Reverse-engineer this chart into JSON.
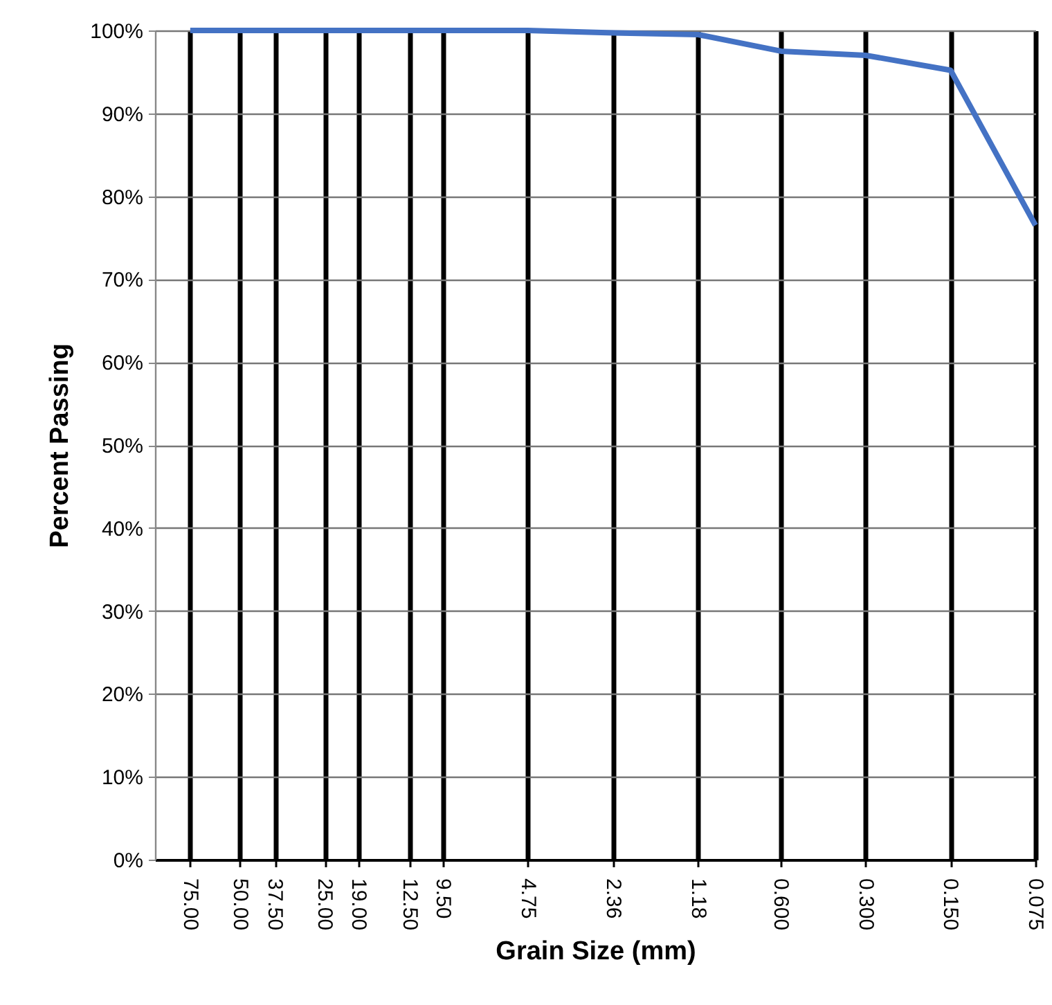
{
  "chart_data": {
    "type": "line",
    "xlabel": "Grain Size (mm)",
    "ylabel": "Percent Passing",
    "x": [
      75,
      50,
      37.5,
      25,
      19,
      12.5,
      9.5,
      4.75,
      2.36,
      1.18,
      0.6,
      0.3,
      0.15,
      0.075
    ],
    "series": [
      {
        "color": "#4472c4",
        "values": [
          100,
          100,
          100,
          100,
          100,
          100,
          100,
          100,
          99.7,
          99.5,
          97.5,
          97.0,
          95.2,
          76.5
        ]
      }
    ],
    "log": "x",
    "xlim": [
      100,
      0.075
    ],
    "xticks": [
      {
        "value": 75,
        "label": "75.00"
      },
      {
        "value": 50,
        "label": "50.00"
      },
      {
        "value": 37.5,
        "label": "37.50"
      },
      {
        "value": 25,
        "label": "25.00"
      },
      {
        "value": 19,
        "label": "19.00"
      },
      {
        "value": 12.5,
        "label": "12.50"
      },
      {
        "value": 9.5,
        "label": "9.50"
      },
      {
        "value": 4.75,
        "label": "4.75"
      },
      {
        "value": 2.36,
        "label": "2.36"
      },
      {
        "value": 1.18,
        "label": "1.18"
      },
      {
        "value": 0.6,
        "label": "0.600"
      },
      {
        "value": 0.3,
        "label": "0.300"
      },
      {
        "value": 0.15,
        "label": "0.150"
      },
      {
        "value": 0.075,
        "label": "0.075"
      }
    ],
    "ylim": [
      0,
      100
    ],
    "yticks": [
      {
        "value": 0,
        "label": "0%"
      },
      {
        "value": 10,
        "label": "10%"
      },
      {
        "value": 20,
        "label": "20%"
      },
      {
        "value": 30,
        "label": "30%"
      },
      {
        "value": 40,
        "label": "40%"
      },
      {
        "value": 50,
        "label": "50%"
      },
      {
        "value": 60,
        "label": "60%"
      },
      {
        "value": 70,
        "label": "70%"
      },
      {
        "value": 80,
        "label": "80%"
      },
      {
        "value": 90,
        "label": "90%"
      },
      {
        "value": 100,
        "label": "100%"
      }
    ],
    "grid": true,
    "marker": "none",
    "line_style": "solid"
  }
}
